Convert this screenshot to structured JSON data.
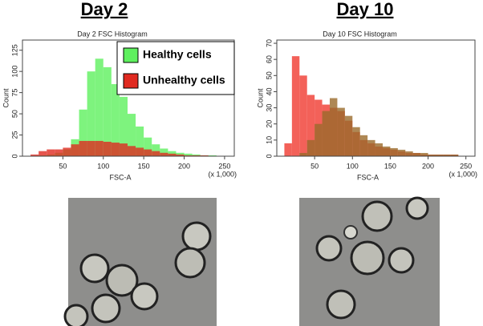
{
  "chart_data": [
    {
      "type": "histogram",
      "heading": "Day 2",
      "title": "Day 2 FSC Histogram",
      "x_label": "FSC-A",
      "y_label": "Count",
      "x_unit_note": "(x 1,000)",
      "bins": [
        0,
        10,
        20,
        30,
        40,
        50,
        60,
        70,
        80,
        90,
        100,
        110,
        120,
        130,
        140,
        150,
        160,
        170,
        180,
        190,
        200,
        210,
        220,
        230,
        240,
        250,
        260
      ],
      "series": [
        {
          "name": "Healthy cells",
          "color": "#5ef05e",
          "values": [
            0,
            0,
            1,
            2,
            4,
            8,
            20,
            55,
            100,
            115,
            105,
            85,
            70,
            50,
            35,
            22,
            14,
            9,
            6,
            4,
            3,
            2,
            1,
            1,
            0,
            0
          ]
        },
        {
          "name": "Unhealthy cells",
          "color": "#e02a20",
          "values": [
            0,
            2,
            6,
            8,
            8,
            10,
            14,
            18,
            18,
            18,
            17,
            16,
            15,
            12,
            10,
            8,
            6,
            4,
            3,
            2,
            1,
            1,
            1,
            0,
            0,
            0
          ]
        }
      ],
      "xlim": [
        0,
        262
      ],
      "xticks": [
        50,
        100,
        150,
        200,
        250
      ],
      "ylim": [
        0,
        137
      ],
      "yticks": [
        0,
        25,
        50,
        75,
        100,
        125
      ],
      "legend": "upper right"
    },
    {
      "type": "histogram",
      "heading": "Day 10",
      "title": "Day 10 FSC Histogram",
      "x_label": "FSC-A",
      "y_label": "Count",
      "x_unit_note": "(x 1,000)",
      "bins": [
        0,
        10,
        20,
        30,
        40,
        50,
        60,
        70,
        80,
        90,
        100,
        110,
        120,
        130,
        140,
        150,
        160,
        170,
        180,
        190,
        200,
        210,
        220,
        230,
        240,
        250,
        260
      ],
      "series": [
        {
          "color": "#f03a30",
          "values": [
            0,
            8,
            62,
            50,
            38,
            35,
            32,
            30,
            28,
            22,
            15,
            10,
            8,
            6,
            5,
            4,
            3,
            2,
            2,
            1,
            1,
            1,
            1,
            1,
            0,
            0
          ]
        },
        {
          "color": "#9a6a2a",
          "values": [
            0,
            0,
            0,
            2,
            10,
            20,
            28,
            36,
            30,
            25,
            18,
            13,
            10,
            8,
            6,
            5,
            4,
            3,
            2,
            2,
            1,
            1,
            1,
            1,
            0,
            0
          ]
        }
      ],
      "xlim": [
        0,
        262
      ],
      "xticks": [
        50,
        100,
        150,
        200,
        250
      ],
      "ylim": [
        0,
        72
      ],
      "yticks": [
        0,
        10,
        20,
        30,
        40,
        50,
        60,
        70
      ]
    }
  ]
}
